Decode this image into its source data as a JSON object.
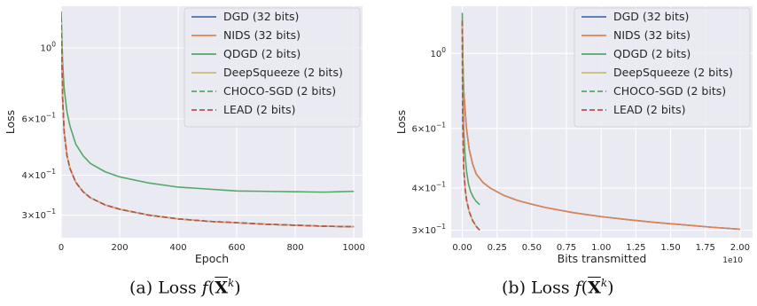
{
  "colors": {
    "panel_bg": "#EAEAF2",
    "grid": "#FFFFFF",
    "DGD": "#4C72B0",
    "NIDS": "#DD8452",
    "QDGD": "#55A868",
    "DeepSqueeze": "#CCB974",
    "CHOCO-SGD": "#55A868",
    "LEAD": "#C44E52"
  },
  "captions": {
    "a_prefix": "(a) Loss ",
    "b_prefix": "(b) Loss ",
    "math_f": "f",
    "math_X": "X",
    "math_k": "k",
    "math_open": "(",
    "math_close": ")"
  },
  "chart_data": [
    {
      "type": "line",
      "xlabel": "Epoch",
      "ylabel": "Loss",
      "yscale": "log",
      "xlim": [
        0,
        1030
      ],
      "ylim": [
        0.255,
        1.35
      ],
      "xticks": [
        0,
        200,
        400,
        600,
        800,
        1000
      ],
      "xtick_labels": [
        "0",
        "200",
        "400",
        "600",
        "800",
        "1000"
      ],
      "yticks": [
        1.0,
        0.6,
        0.4,
        0.3
      ],
      "ytick_labels": [
        "10^0",
        "6×10^-1",
        "4×10^-1",
        "3×10^-1"
      ],
      "grid": true,
      "legend": "top-right",
      "series": [
        {
          "name": "DGD (32 bits)",
          "style": "solid",
          "x": [
            0,
            5,
            10,
            20,
            30,
            50,
            75,
            100,
            150,
            200,
            300,
            400,
            500,
            600,
            700,
            800,
            900,
            1000
          ],
          "y": [
            1.25,
            0.7,
            0.55,
            0.46,
            0.42,
            0.38,
            0.355,
            0.34,
            0.323,
            0.313,
            0.3,
            0.292,
            0.287,
            0.284,
            0.281,
            0.279,
            0.277,
            0.276
          ]
        },
        {
          "name": "NIDS (32 bits)",
          "style": "solid",
          "x": [
            0,
            5,
            10,
            20,
            30,
            50,
            75,
            100,
            150,
            200,
            300,
            400,
            500,
            600,
            700,
            800,
            900,
            1000
          ],
          "y": [
            1.25,
            0.7,
            0.55,
            0.46,
            0.42,
            0.38,
            0.355,
            0.34,
            0.323,
            0.313,
            0.3,
            0.292,
            0.287,
            0.284,
            0.281,
            0.279,
            0.277,
            0.276
          ]
        },
        {
          "name": "QDGD (2 bits)",
          "style": "solid",
          "x": [
            0,
            5,
            10,
            20,
            30,
            50,
            75,
            100,
            150,
            200,
            300,
            400,
            500,
            600,
            700,
            800,
            900,
            1000
          ],
          "y": [
            1.3,
            0.9,
            0.75,
            0.63,
            0.57,
            0.5,
            0.46,
            0.435,
            0.41,
            0.395,
            0.378,
            0.367,
            0.362,
            0.357,
            0.356,
            0.355,
            0.354,
            0.356
          ]
        },
        {
          "name": "DeepSqueeze (2 bits)",
          "style": "solid",
          "x": [
            0,
            5,
            10,
            20,
            30,
            50,
            75,
            100,
            150,
            200,
            300,
            400,
            500,
            600,
            700,
            800,
            900,
            1000
          ],
          "y": [
            1.25,
            0.7,
            0.55,
            0.46,
            0.42,
            0.38,
            0.355,
            0.34,
            0.323,
            0.313,
            0.3,
            0.292,
            0.287,
            0.284,
            0.281,
            0.279,
            0.277,
            0.276
          ]
        },
        {
          "name": "CHOCO-SGD (2 bits)",
          "style": "dashed",
          "x": [
            0,
            5,
            10,
            20,
            30,
            50,
            75,
            100,
            150,
            200,
            300,
            400,
            500,
            600,
            700,
            800,
            900,
            1000
          ],
          "y": [
            1.25,
            0.7,
            0.55,
            0.46,
            0.42,
            0.38,
            0.355,
            0.34,
            0.323,
            0.313,
            0.3,
            0.292,
            0.287,
            0.284,
            0.281,
            0.279,
            0.277,
            0.276
          ]
        },
        {
          "name": "LEAD (2 bits)",
          "style": "dashed",
          "x": [
            0,
            5,
            10,
            20,
            30,
            50,
            75,
            100,
            150,
            200,
            300,
            400,
            500,
            600,
            700,
            800,
            900,
            1000
          ],
          "y": [
            1.25,
            0.7,
            0.55,
            0.46,
            0.42,
            0.38,
            0.355,
            0.34,
            0.323,
            0.313,
            0.3,
            0.292,
            0.287,
            0.284,
            0.281,
            0.279,
            0.277,
            0.276
          ]
        }
      ]
    },
    {
      "type": "line",
      "xlabel": "Bits transmitted",
      "ylabel": "Loss",
      "yscale": "log",
      "x_offset_label": "1e10",
      "xlim": [
        -0.08,
        2.09
      ],
      "ylim": [
        0.285,
        1.38
      ],
      "xticks": [
        0.0,
        0.25,
        0.5,
        0.75,
        1.0,
        1.25,
        1.5,
        1.75,
        2.0
      ],
      "xtick_labels": [
        "0.00",
        "0.25",
        "0.50",
        "0.75",
        "1.00",
        "1.25",
        "1.50",
        "1.75",
        "2.00"
      ],
      "yticks": [
        1.0,
        0.6,
        0.4,
        0.3
      ],
      "ytick_labels": [
        "10^0",
        "6×10^-1",
        "4×10^-1",
        "3×10^-1"
      ],
      "grid": true,
      "legend": "top-right",
      "series": [
        {
          "name": "DGD (32 bits)",
          "style": "solid",
          "x": [
            0.0,
            0.004,
            0.01,
            0.02,
            0.03,
            0.05,
            0.075,
            0.1,
            0.15,
            0.2,
            0.3,
            0.4,
            0.5,
            0.6,
            0.8,
            1.0,
            1.2,
            1.4,
            1.6,
            1.8,
            2.0
          ],
          "y": [
            1.25,
            0.95,
            0.78,
            0.68,
            0.6,
            0.52,
            0.47,
            0.44,
            0.415,
            0.4,
            0.38,
            0.367,
            0.358,
            0.35,
            0.338,
            0.329,
            0.322,
            0.316,
            0.311,
            0.306,
            0.302
          ]
        },
        {
          "name": "NIDS (32 bits)",
          "style": "solid",
          "x": [
            0.0,
            0.004,
            0.01,
            0.02,
            0.03,
            0.05,
            0.075,
            0.1,
            0.15,
            0.2,
            0.3,
            0.4,
            0.5,
            0.6,
            0.8,
            1.0,
            1.2,
            1.4,
            1.6,
            1.8,
            2.0
          ],
          "y": [
            1.25,
            0.95,
            0.78,
            0.68,
            0.6,
            0.52,
            0.47,
            0.44,
            0.415,
            0.4,
            0.38,
            0.367,
            0.358,
            0.35,
            0.338,
            0.329,
            0.322,
            0.316,
            0.311,
            0.306,
            0.302
          ]
        },
        {
          "name": "QDGD (2 bits)",
          "style": "solid",
          "x": [
            0.0,
            0.005,
            0.01,
            0.02,
            0.03,
            0.045,
            0.06,
            0.08,
            0.1,
            0.125
          ],
          "y": [
            1.32,
            0.75,
            0.6,
            0.5,
            0.45,
            0.41,
            0.39,
            0.375,
            0.365,
            0.357
          ]
        },
        {
          "name": "DeepSqueeze (2 bits)",
          "style": "solid",
          "x": [
            0.0,
            0.002,
            0.005,
            0.01,
            0.02,
            0.03,
            0.05,
            0.075,
            0.1,
            0.125
          ],
          "y": [
            1.25,
            0.7,
            0.55,
            0.46,
            0.4,
            0.37,
            0.34,
            0.32,
            0.308,
            0.3
          ]
        },
        {
          "name": "CHOCO-SGD (2 bits)",
          "style": "dashed",
          "x": [
            0.0,
            0.002,
            0.005,
            0.01,
            0.02,
            0.03,
            0.05,
            0.075,
            0.1,
            0.125
          ],
          "y": [
            1.25,
            0.7,
            0.55,
            0.46,
            0.4,
            0.37,
            0.34,
            0.32,
            0.308,
            0.3
          ]
        },
        {
          "name": "LEAD (2 bits)",
          "style": "dashed",
          "x": [
            0.0,
            0.002,
            0.005,
            0.01,
            0.02,
            0.03,
            0.05,
            0.075,
            0.1,
            0.125
          ],
          "y": [
            1.25,
            0.7,
            0.55,
            0.46,
            0.4,
            0.37,
            0.34,
            0.32,
            0.308,
            0.3
          ]
        }
      ]
    }
  ]
}
